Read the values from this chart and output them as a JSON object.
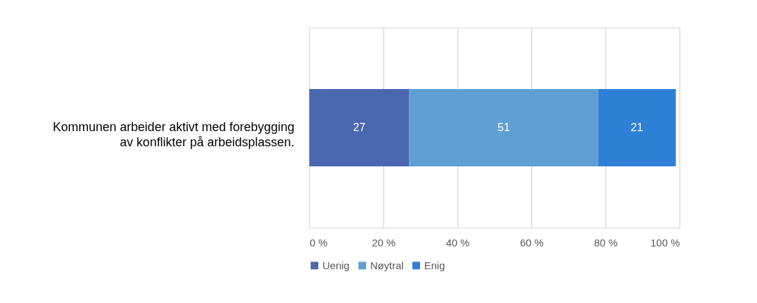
{
  "chart_data": {
    "type": "bar",
    "orientation": "horizontal",
    "stacked": true,
    "categories": [
      "Kommunen arbeider aktivt med forebygging av konflikter på arbeidsplassen."
    ],
    "series": [
      {
        "name": "Uenig",
        "color": "#4a67b0",
        "values": [
          27
        ]
      },
      {
        "name": "Nøytral",
        "color": "#5f9fd4",
        "values": [
          51
        ]
      },
      {
        "name": "Enig",
        "color": "#2e7fd6",
        "values": [
          21
        ]
      }
    ],
    "xlim": [
      0,
      100
    ],
    "xticks": [
      {
        "value": 0,
        "label": "0 %"
      },
      {
        "value": 20,
        "label": "20 %"
      },
      {
        "value": 40,
        "label": "40 %"
      },
      {
        "value": 60,
        "label": "60 %"
      },
      {
        "value": 80,
        "label": "80 %"
      },
      {
        "value": 100,
        "label": "100 %"
      }
    ],
    "grid": "x",
    "legend": "bottom",
    "data_labels": true
  }
}
